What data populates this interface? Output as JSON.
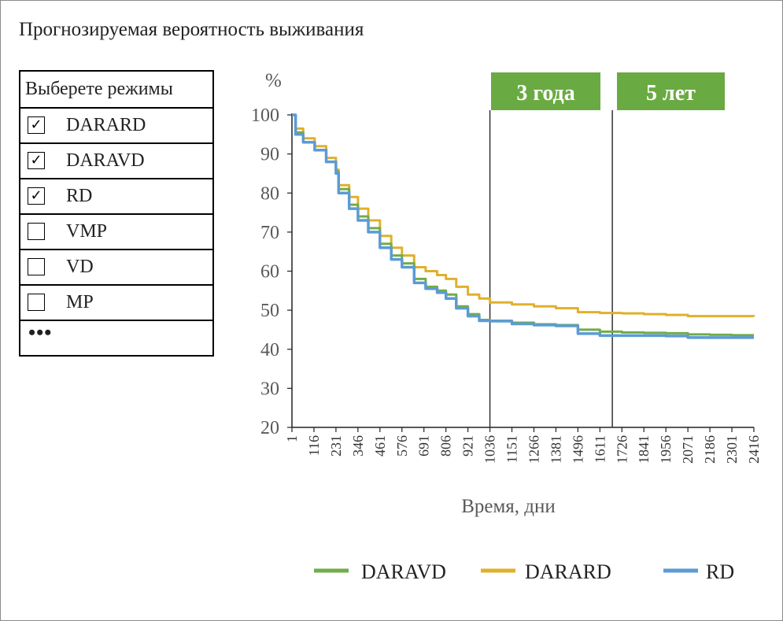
{
  "title": "Прогнозируемая вероятность выживания",
  "regimes": {
    "header": "Выберете режимы",
    "items": [
      {
        "label": "DARARD",
        "checked": true
      },
      {
        "label": "DARAVD",
        "checked": true
      },
      {
        "label": "RD",
        "checked": true
      },
      {
        "label": "VMP",
        "checked": false
      },
      {
        "label": "VD",
        "checked": false
      },
      {
        "label": "MP",
        "checked": false
      }
    ],
    "more": "•••"
  },
  "colors": {
    "DARAVD": "#70ad47",
    "DARARD": "#e0b02c",
    "RD": "#5b9bd5",
    "badge": "#6aaa43"
  },
  "chart_data": {
    "type": "line",
    "ylabel": "%",
    "xlabel": "Время, дни",
    "ylim": [
      20,
      100
    ],
    "yticks": [
      "100",
      "90",
      "80",
      "70",
      "60",
      "50",
      "40",
      "30",
      "20"
    ],
    "xticks": [
      "1",
      "116",
      "231",
      "346",
      "461",
      "576",
      "691",
      "806",
      "921",
      "1036",
      "1151",
      "1266",
      "1381",
      "1496",
      "1611",
      "1726",
      "1841",
      "1956",
      "2071",
      "2186",
      "2301",
      "2416"
    ],
    "xlim": [
      1,
      2416
    ],
    "markers": [
      {
        "label": "3 года",
        "x": 1036
      },
      {
        "label": "5 лет",
        "x": 1676
      }
    ],
    "series": [
      {
        "name": "DARARD",
        "points": [
          [
            1,
            100
          ],
          [
            20,
            96.5
          ],
          [
            60,
            94
          ],
          [
            120,
            92
          ],
          [
            180,
            89
          ],
          [
            231,
            86
          ],
          [
            245,
            82
          ],
          [
            300,
            79
          ],
          [
            346,
            76
          ],
          [
            400,
            73
          ],
          [
            461,
            69
          ],
          [
            520,
            66
          ],
          [
            576,
            64
          ],
          [
            640,
            61
          ],
          [
            700,
            60
          ],
          [
            760,
            59
          ],
          [
            806,
            58
          ],
          [
            860,
            56
          ],
          [
            921,
            54
          ],
          [
            980,
            53
          ],
          [
            1036,
            52
          ],
          [
            1151,
            51.5
          ],
          [
            1266,
            51
          ],
          [
            1381,
            50.5
          ],
          [
            1496,
            49.5
          ],
          [
            1611,
            49.3
          ],
          [
            1726,
            49.2
          ],
          [
            1841,
            49
          ],
          [
            1956,
            48.8
          ],
          [
            2071,
            48.5
          ],
          [
            2186,
            48.5
          ],
          [
            2301,
            48.5
          ],
          [
            2416,
            48.4
          ]
        ]
      },
      {
        "name": "DARAVD",
        "points": [
          [
            1,
            100
          ],
          [
            20,
            95.5
          ],
          [
            60,
            93
          ],
          [
            120,
            91
          ],
          [
            180,
            88
          ],
          [
            231,
            85.5
          ],
          [
            245,
            81
          ],
          [
            300,
            77
          ],
          [
            346,
            74
          ],
          [
            400,
            71
          ],
          [
            461,
            67
          ],
          [
            520,
            64
          ],
          [
            576,
            62
          ],
          [
            640,
            58
          ],
          [
            700,
            56
          ],
          [
            760,
            55
          ],
          [
            806,
            54
          ],
          [
            860,
            51
          ],
          [
            921,
            49
          ],
          [
            980,
            47.5
          ],
          [
            1036,
            47.3
          ],
          [
            1151,
            46.8
          ],
          [
            1266,
            46.4
          ],
          [
            1381,
            46.2
          ],
          [
            1496,
            45
          ],
          [
            1611,
            44.5
          ],
          [
            1726,
            44.3
          ],
          [
            1841,
            44.2
          ],
          [
            1956,
            44.1
          ],
          [
            2071,
            43.8
          ],
          [
            2186,
            43.7
          ],
          [
            2301,
            43.6
          ],
          [
            2416,
            43.6
          ]
        ]
      },
      {
        "name": "RD",
        "points": [
          [
            1,
            100
          ],
          [
            20,
            95
          ],
          [
            60,
            93
          ],
          [
            120,
            91
          ],
          [
            180,
            88
          ],
          [
            231,
            85
          ],
          [
            245,
            80
          ],
          [
            300,
            76
          ],
          [
            346,
            73
          ],
          [
            400,
            70
          ],
          [
            461,
            66
          ],
          [
            520,
            63
          ],
          [
            576,
            61
          ],
          [
            640,
            57
          ],
          [
            700,
            55.5
          ],
          [
            760,
            54.5
          ],
          [
            806,
            53
          ],
          [
            860,
            50.5
          ],
          [
            921,
            48.5
          ],
          [
            980,
            47.3
          ],
          [
            1036,
            47.2
          ],
          [
            1151,
            46.5
          ],
          [
            1266,
            46.2
          ],
          [
            1381,
            46
          ],
          [
            1496,
            44
          ],
          [
            1611,
            43.5
          ],
          [
            1726,
            43.5
          ],
          [
            1841,
            43.5
          ],
          [
            1956,
            43.4
          ],
          [
            2071,
            43
          ],
          [
            2186,
            43
          ],
          [
            2301,
            43
          ],
          [
            2416,
            43
          ]
        ]
      }
    ],
    "legend": [
      "DARAVD",
      "DARARD",
      "RD"
    ],
    "legend_position": "bottom-right"
  }
}
